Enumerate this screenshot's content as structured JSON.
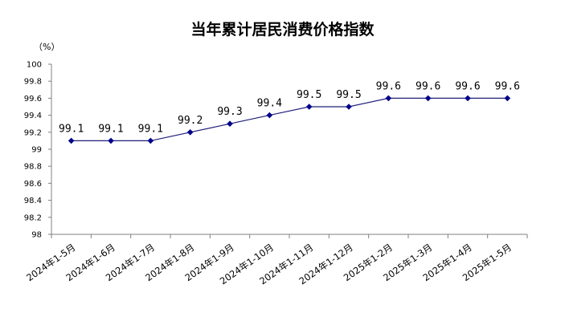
{
  "chart_data": {
    "type": "line",
    "title": "当年累计居民消费价格指数",
    "unit": "（%）",
    "categories": [
      "2024年1-5月",
      "2024年1-6月",
      "2024年1-7月",
      "2024年1-8月",
      "2024年1-9月",
      "2024年1-10月",
      "2024年1-11月",
      "2024年1-12月",
      "2025年1-2月",
      "2025年1-3月",
      "2025年1-4月",
      "2025年1-5月"
    ],
    "series": [
      {
        "values": [
          99.1,
          99.1,
          99.1,
          99.2,
          99.3,
          99.4,
          99.5,
          99.5,
          99.6,
          99.6,
          99.6,
          99.6
        ]
      }
    ],
    "data_labels": [
      "99.1",
      "99.1",
      "99.1",
      "99.2",
      "99.3",
      "99.4",
      "99.5",
      "99.5",
      "99.6",
      "99.6",
      "99.6",
      "99.6"
    ],
    "yticks": [
      "98",
      "98.2",
      "98.4",
      "98.6",
      "98.8",
      "99",
      "99.2",
      "99.4",
      "99.6",
      "99.8",
      "100"
    ],
    "ylim": [
      98,
      100
    ],
    "grid": false,
    "legend": "none",
    "colors": {
      "line": "#1f1f7a",
      "marker": "#00008b",
      "axis": "#808080"
    }
  }
}
